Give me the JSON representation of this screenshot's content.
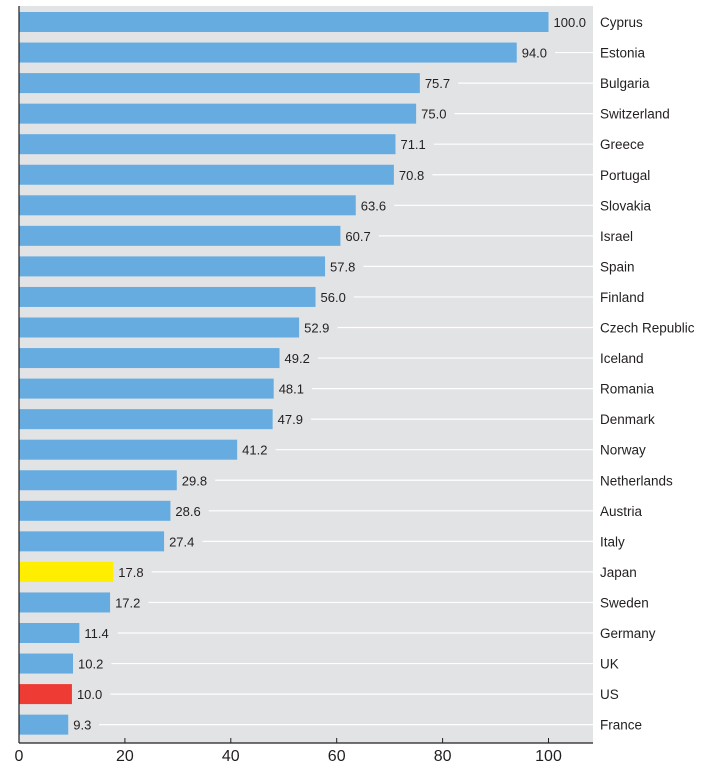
{
  "chart_data": {
    "type": "bar",
    "orientation": "horizontal",
    "categories": [
      "Cyprus",
      "Estonia",
      "Bulgaria",
      "Switzerland",
      "Greece",
      "Portugal",
      "Slovakia",
      "Israel",
      "Spain",
      "Finland",
      "Czech Republic",
      "Iceland",
      "Romania",
      "Denmark",
      "Norway",
      "Netherlands",
      "Austria",
      "Italy",
      "Japan",
      "Sweden",
      "Germany",
      "UK",
      "US",
      "France"
    ],
    "values": [
      100.0,
      94.0,
      75.7,
      75.0,
      71.1,
      70.8,
      63.6,
      60.7,
      57.8,
      56.0,
      52.9,
      49.2,
      48.1,
      47.9,
      41.2,
      29.8,
      28.6,
      27.4,
      17.8,
      17.2,
      11.4,
      10.2,
      10.0,
      9.3
    ],
    "value_labels": [
      "100.0",
      "94.0",
      "75.7",
      "75.0",
      "71.1",
      "70.8",
      "63.6",
      "60.7",
      "57.8",
      "56.0",
      "52.9",
      "49.2",
      "48.1",
      "47.9",
      "41.2",
      "29.8",
      "28.6",
      "27.4",
      "17.8",
      "17.2",
      "11.4",
      "10.2",
      "10.0",
      "9.3"
    ],
    "highlight": {
      "Japan": "#ffee00",
      "US": "#ee3b33"
    },
    "bar_color": "#66ace0",
    "plot_background": "#e2e3e5",
    "xlim": [
      0,
      108
    ],
    "xticks": [
      0,
      20,
      40,
      60,
      80,
      100
    ],
    "xtick_labels": [
      "0",
      "20",
      "40",
      "60",
      "80",
      "100"
    ],
    "title": "",
    "xlabel": "",
    "ylabel": "",
    "grid": "horizontal lines per category",
    "legend": "none"
  }
}
